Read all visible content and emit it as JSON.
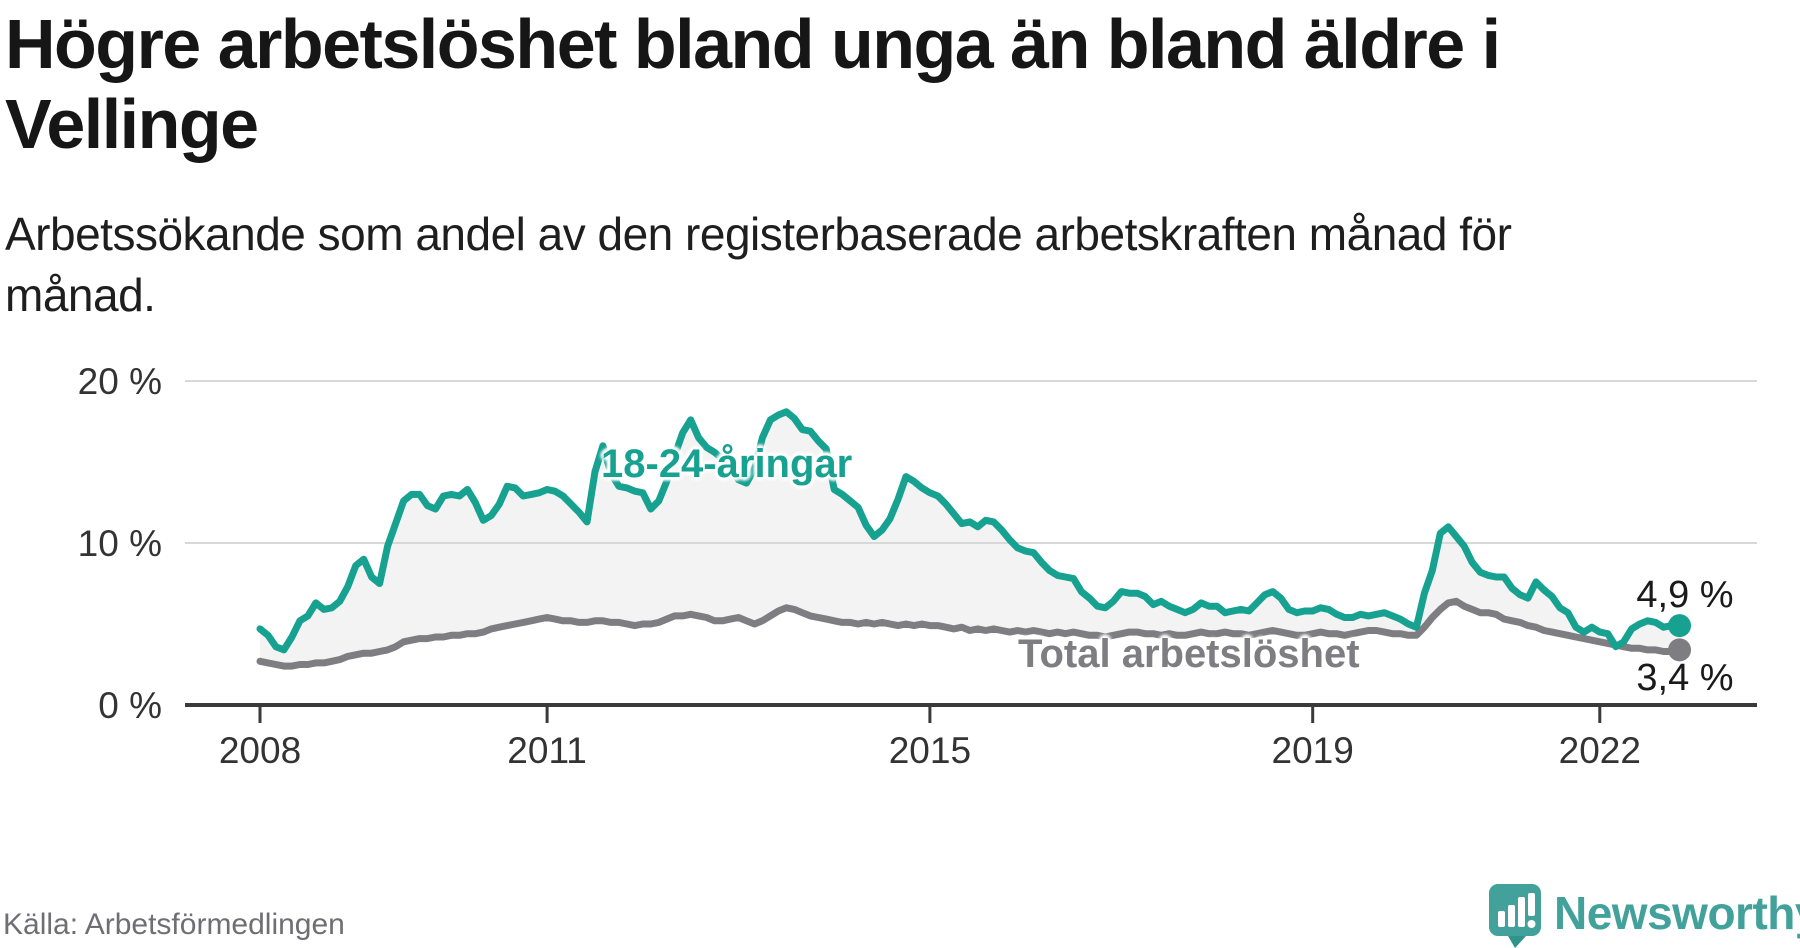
{
  "header": {
    "title": "Högre arbetslöshet bland unga än bland äldre i Vellinge",
    "subtitle": "Arbetssökande som andel av den registerbaserade arbetskraften månad för månad."
  },
  "footer": {
    "source": "Källa: Arbetsförmedlingen",
    "brand": "Newsworthy"
  },
  "chart_data": {
    "type": "line",
    "title": "Högre arbetslöshet bland unga än bland äldre i Vellinge",
    "subtitle": "Arbetssökande som andel av den registerbaserade arbetskraften månad för månad.",
    "unit": "%",
    "x_monthly_start": "2008-01",
    "x_monthly_end": "2022-11",
    "x_ticks": [
      {
        "label": "2008",
        "year": 2008
      },
      {
        "label": "2011",
        "year": 2011
      },
      {
        "label": "2015",
        "year": 2015
      },
      {
        "label": "2019",
        "year": 2019
      },
      {
        "label": "2022",
        "year": 2022
      }
    ],
    "y_ticks": [
      {
        "label": "20 %",
        "value": 20
      },
      {
        "label": "10 %",
        "value": 10
      },
      {
        "label": "0 %",
        "value": 0
      }
    ],
    "ylim": [
      0,
      23
    ],
    "grid": "horizontal",
    "legend": "inline-labels",
    "colors": {
      "fill": "#f3f3f3",
      "grid": "#d8d8d8",
      "axis": "#3a3a3a",
      "tick_text": "#333333"
    },
    "annotations": {
      "youth_end_label": "4,9 %",
      "total_end_label": "3,4 %"
    },
    "series": [
      {
        "name": "18-24-åringar",
        "color": "#16a190",
        "end_value": 4.9,
        "values": [
          4.7,
          4.3,
          3.6,
          3.4,
          4.2,
          5.2,
          5.5,
          6.3,
          5.9,
          6.0,
          6.4,
          7.3,
          8.6,
          9.0,
          7.9,
          7.5,
          9.8,
          11.2,
          12.6,
          13.0,
          13.0,
          12.3,
          12.1,
          12.9,
          13.0,
          12.9,
          13.3,
          12.5,
          11.4,
          11.7,
          12.4,
          13.5,
          13.4,
          12.9,
          13.0,
          13.1,
          13.3,
          13.2,
          12.9,
          12.4,
          11.9,
          11.3,
          14.4,
          16.0,
          14.3,
          13.5,
          13.4,
          13.2,
          13.1,
          12.1,
          12.6,
          13.8,
          15.4,
          16.8,
          17.6,
          16.5,
          15.9,
          15.6,
          15.2,
          14.6,
          13.9,
          13.7,
          14.6,
          16.5,
          17.6,
          17.9,
          18.1,
          17.7,
          17.0,
          16.9,
          16.3,
          15.8,
          13.3,
          13.0,
          12.6,
          12.2,
          11.1,
          10.4,
          10.8,
          11.5,
          12.7,
          14.1,
          13.8,
          13.4,
          13.1,
          12.9,
          12.4,
          11.8,
          11.2,
          11.3,
          11.0,
          11.4,
          11.3,
          10.8,
          10.2,
          9.7,
          9.5,
          9.4,
          8.8,
          8.3,
          8.0,
          7.9,
          7.8,
          7.0,
          6.6,
          6.1,
          6.0,
          6.4,
          7.0,
          6.9,
          6.9,
          6.7,
          6.2,
          6.4,
          6.1,
          5.9,
          5.7,
          5.9,
          6.3,
          6.1,
          6.1,
          5.7,
          5.8,
          5.9,
          5.8,
          6.3,
          6.8,
          7.0,
          6.6,
          5.9,
          5.7,
          5.8,
          5.8,
          6.0,
          5.9,
          5.6,
          5.4,
          5.4,
          5.6,
          5.5,
          5.6,
          5.7,
          5.5,
          5.3,
          5.0,
          4.8,
          6.9,
          8.3,
          10.6,
          11.0,
          10.4,
          9.8,
          8.8,
          8.2,
          8.0,
          7.9,
          7.9,
          7.2,
          6.8,
          6.6,
          7.6,
          7.1,
          6.7,
          6.0,
          5.7,
          4.8,
          4.5,
          4.8,
          4.5,
          4.4,
          3.6,
          3.9,
          4.7,
          5.0,
          5.2,
          5.1,
          4.8,
          4.9,
          4.9
        ]
      },
      {
        "name": "Total arbetslöshet",
        "color": "#7d7d82",
        "end_value": 3.4,
        "values": [
          2.7,
          2.6,
          2.5,
          2.4,
          2.4,
          2.5,
          2.5,
          2.6,
          2.6,
          2.7,
          2.8,
          3.0,
          3.1,
          3.2,
          3.2,
          3.3,
          3.4,
          3.6,
          3.9,
          4.0,
          4.1,
          4.1,
          4.2,
          4.2,
          4.3,
          4.3,
          4.4,
          4.4,
          4.5,
          4.7,
          4.8,
          4.9,
          5.0,
          5.1,
          5.2,
          5.3,
          5.4,
          5.3,
          5.2,
          5.2,
          5.1,
          5.1,
          5.2,
          5.2,
          5.1,
          5.1,
          5.0,
          4.9,
          5.0,
          5.0,
          5.1,
          5.3,
          5.5,
          5.5,
          5.6,
          5.5,
          5.4,
          5.2,
          5.2,
          5.3,
          5.4,
          5.2,
          5.0,
          5.2,
          5.5,
          5.8,
          6.0,
          5.9,
          5.7,
          5.5,
          5.4,
          5.3,
          5.2,
          5.1,
          5.1,
          5.0,
          5.1,
          5.0,
          5.1,
          5.0,
          4.9,
          5.0,
          4.9,
          5.0,
          4.9,
          4.9,
          4.8,
          4.7,
          4.8,
          4.6,
          4.7,
          4.6,
          4.7,
          4.6,
          4.5,
          4.6,
          4.5,
          4.6,
          4.5,
          4.4,
          4.5,
          4.4,
          4.5,
          4.4,
          4.3,
          4.3,
          4.2,
          4.3,
          4.4,
          4.5,
          4.5,
          4.4,
          4.4,
          4.3,
          4.4,
          4.3,
          4.3,
          4.4,
          4.5,
          4.4,
          4.4,
          4.5,
          4.4,
          4.4,
          4.3,
          4.4,
          4.5,
          4.6,
          4.5,
          4.4,
          4.3,
          4.3,
          4.4,
          4.5,
          4.4,
          4.4,
          4.3,
          4.4,
          4.5,
          4.6,
          4.6,
          4.5,
          4.4,
          4.4,
          4.3,
          4.3,
          4.8,
          5.4,
          5.9,
          6.3,
          6.4,
          6.1,
          5.9,
          5.7,
          5.7,
          5.6,
          5.3,
          5.2,
          5.1,
          4.9,
          4.8,
          4.6,
          4.5,
          4.4,
          4.3,
          4.2,
          4.1,
          4.0,
          3.9,
          3.8,
          3.7,
          3.6,
          3.5,
          3.5,
          3.4,
          3.4,
          3.3,
          3.3,
          3.4
        ]
      }
    ]
  }
}
